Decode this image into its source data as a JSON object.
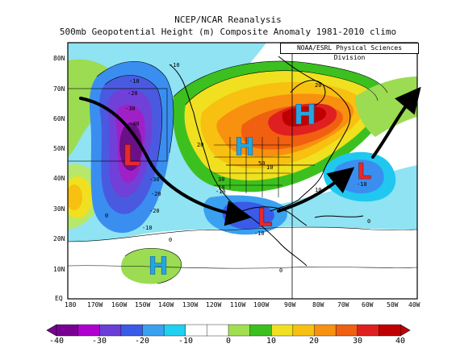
{
  "titles": {
    "line1": "NCEP/NCAR Reanalysis",
    "line2": "500mb Geopotential Height (m) Composite Anomaly 1981-2010 climo",
    "credit": "NOAA/ESRL Physical Sciences Division"
  },
  "latitude_labels": [
    "80N",
    "70N",
    "60N",
    "50N",
    "40N",
    "30N",
    "20N",
    "10N",
    "EQ"
  ],
  "longitude_labels": [
    "180",
    "170W",
    "160W",
    "150W",
    "140W",
    "130W",
    "120W",
    "110W",
    "100W",
    "90W",
    "80W",
    "70W",
    "60W",
    "50W",
    "40W"
  ],
  "colorbar": {
    "ticks": [
      "-40",
      "-30",
      "-20",
      "-10",
      "0",
      "10",
      "20",
      "30",
      "40"
    ],
    "colors": [
      "#7a0094",
      "#b000d0",
      "#6a3ed8",
      "#3a5ae8",
      "#3aa0f0",
      "#20d0f0",
      "#ffffff",
      "#ffffff",
      "#a0e050",
      "#3cc020",
      "#f0e020",
      "#f8c010",
      "#f89010",
      "#f06010",
      "#e02020",
      "#c00000"
    ]
  },
  "markers": [
    {
      "letter": "L",
      "kind": "low"
    },
    {
      "letter": "H",
      "kind": "high"
    },
    {
      "letter": "H",
      "kind": "high"
    },
    {
      "letter": "L",
      "kind": "low"
    },
    {
      "letter": "L",
      "kind": "low"
    },
    {
      "letter": "H",
      "kind": "high"
    }
  ],
  "contour_labels": [
    "-10",
    "-10",
    "-20",
    "-30",
    "-40",
    "-20",
    "-30",
    "-20",
    "-10",
    "0",
    "0",
    "-10",
    "-10",
    "-10",
    "10",
    "20",
    "50",
    "20",
    "30",
    "10",
    "10",
    "0",
    "0"
  ],
  "colors": {
    "low_letter": "#e8282a",
    "high_letter": "#26a6dd",
    "arrow": "#000000"
  }
}
